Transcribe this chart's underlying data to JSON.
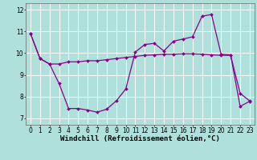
{
  "background_color": "#b0e0dc",
  "line_color": "#880088",
  "marker": "D",
  "marker_size": 2.0,
  "line_width": 0.9,
  "xlabel": "Windchill (Refroidissement éolien,°C)",
  "xlabel_fontsize": 6.5,
  "tick_fontsize": 5.5,
  "xlim": [
    -0.5,
    23.5
  ],
  "ylim": [
    6.7,
    12.3
  ],
  "yticks": [
    7,
    8,
    9,
    10,
    11,
    12
  ],
  "xticks": [
    0,
    1,
    2,
    3,
    4,
    5,
    6,
    7,
    8,
    9,
    10,
    11,
    12,
    13,
    14,
    15,
    16,
    17,
    18,
    19,
    20,
    21,
    22,
    23
  ],
  "line1_x": [
    0,
    1,
    2,
    3,
    4,
    5,
    6,
    7,
    8,
    9,
    10,
    11,
    12,
    13,
    14,
    15,
    16,
    17,
    18,
    19,
    20,
    21,
    22,
    23
  ],
  "line1_y": [
    10.9,
    9.75,
    9.5,
    9.5,
    9.6,
    9.6,
    9.65,
    9.65,
    9.7,
    9.75,
    9.8,
    9.85,
    9.9,
    9.92,
    9.95,
    9.95,
    9.97,
    9.97,
    9.95,
    9.92,
    9.9,
    9.9,
    8.15,
    7.8
  ],
  "line2_x": [
    0,
    1,
    2,
    3,
    4,
    5,
    6,
    7,
    8,
    9,
    10,
    11,
    12,
    13,
    14,
    15,
    16,
    17,
    18,
    19,
    20,
    21,
    22,
    23
  ],
  "line2_y": [
    10.9,
    9.75,
    9.5,
    8.6,
    7.45,
    7.45,
    7.38,
    7.28,
    7.42,
    7.8,
    8.35,
    10.05,
    10.4,
    10.45,
    10.1,
    10.55,
    10.65,
    10.75,
    11.7,
    11.78,
    9.95,
    9.92,
    7.55,
    7.78
  ]
}
